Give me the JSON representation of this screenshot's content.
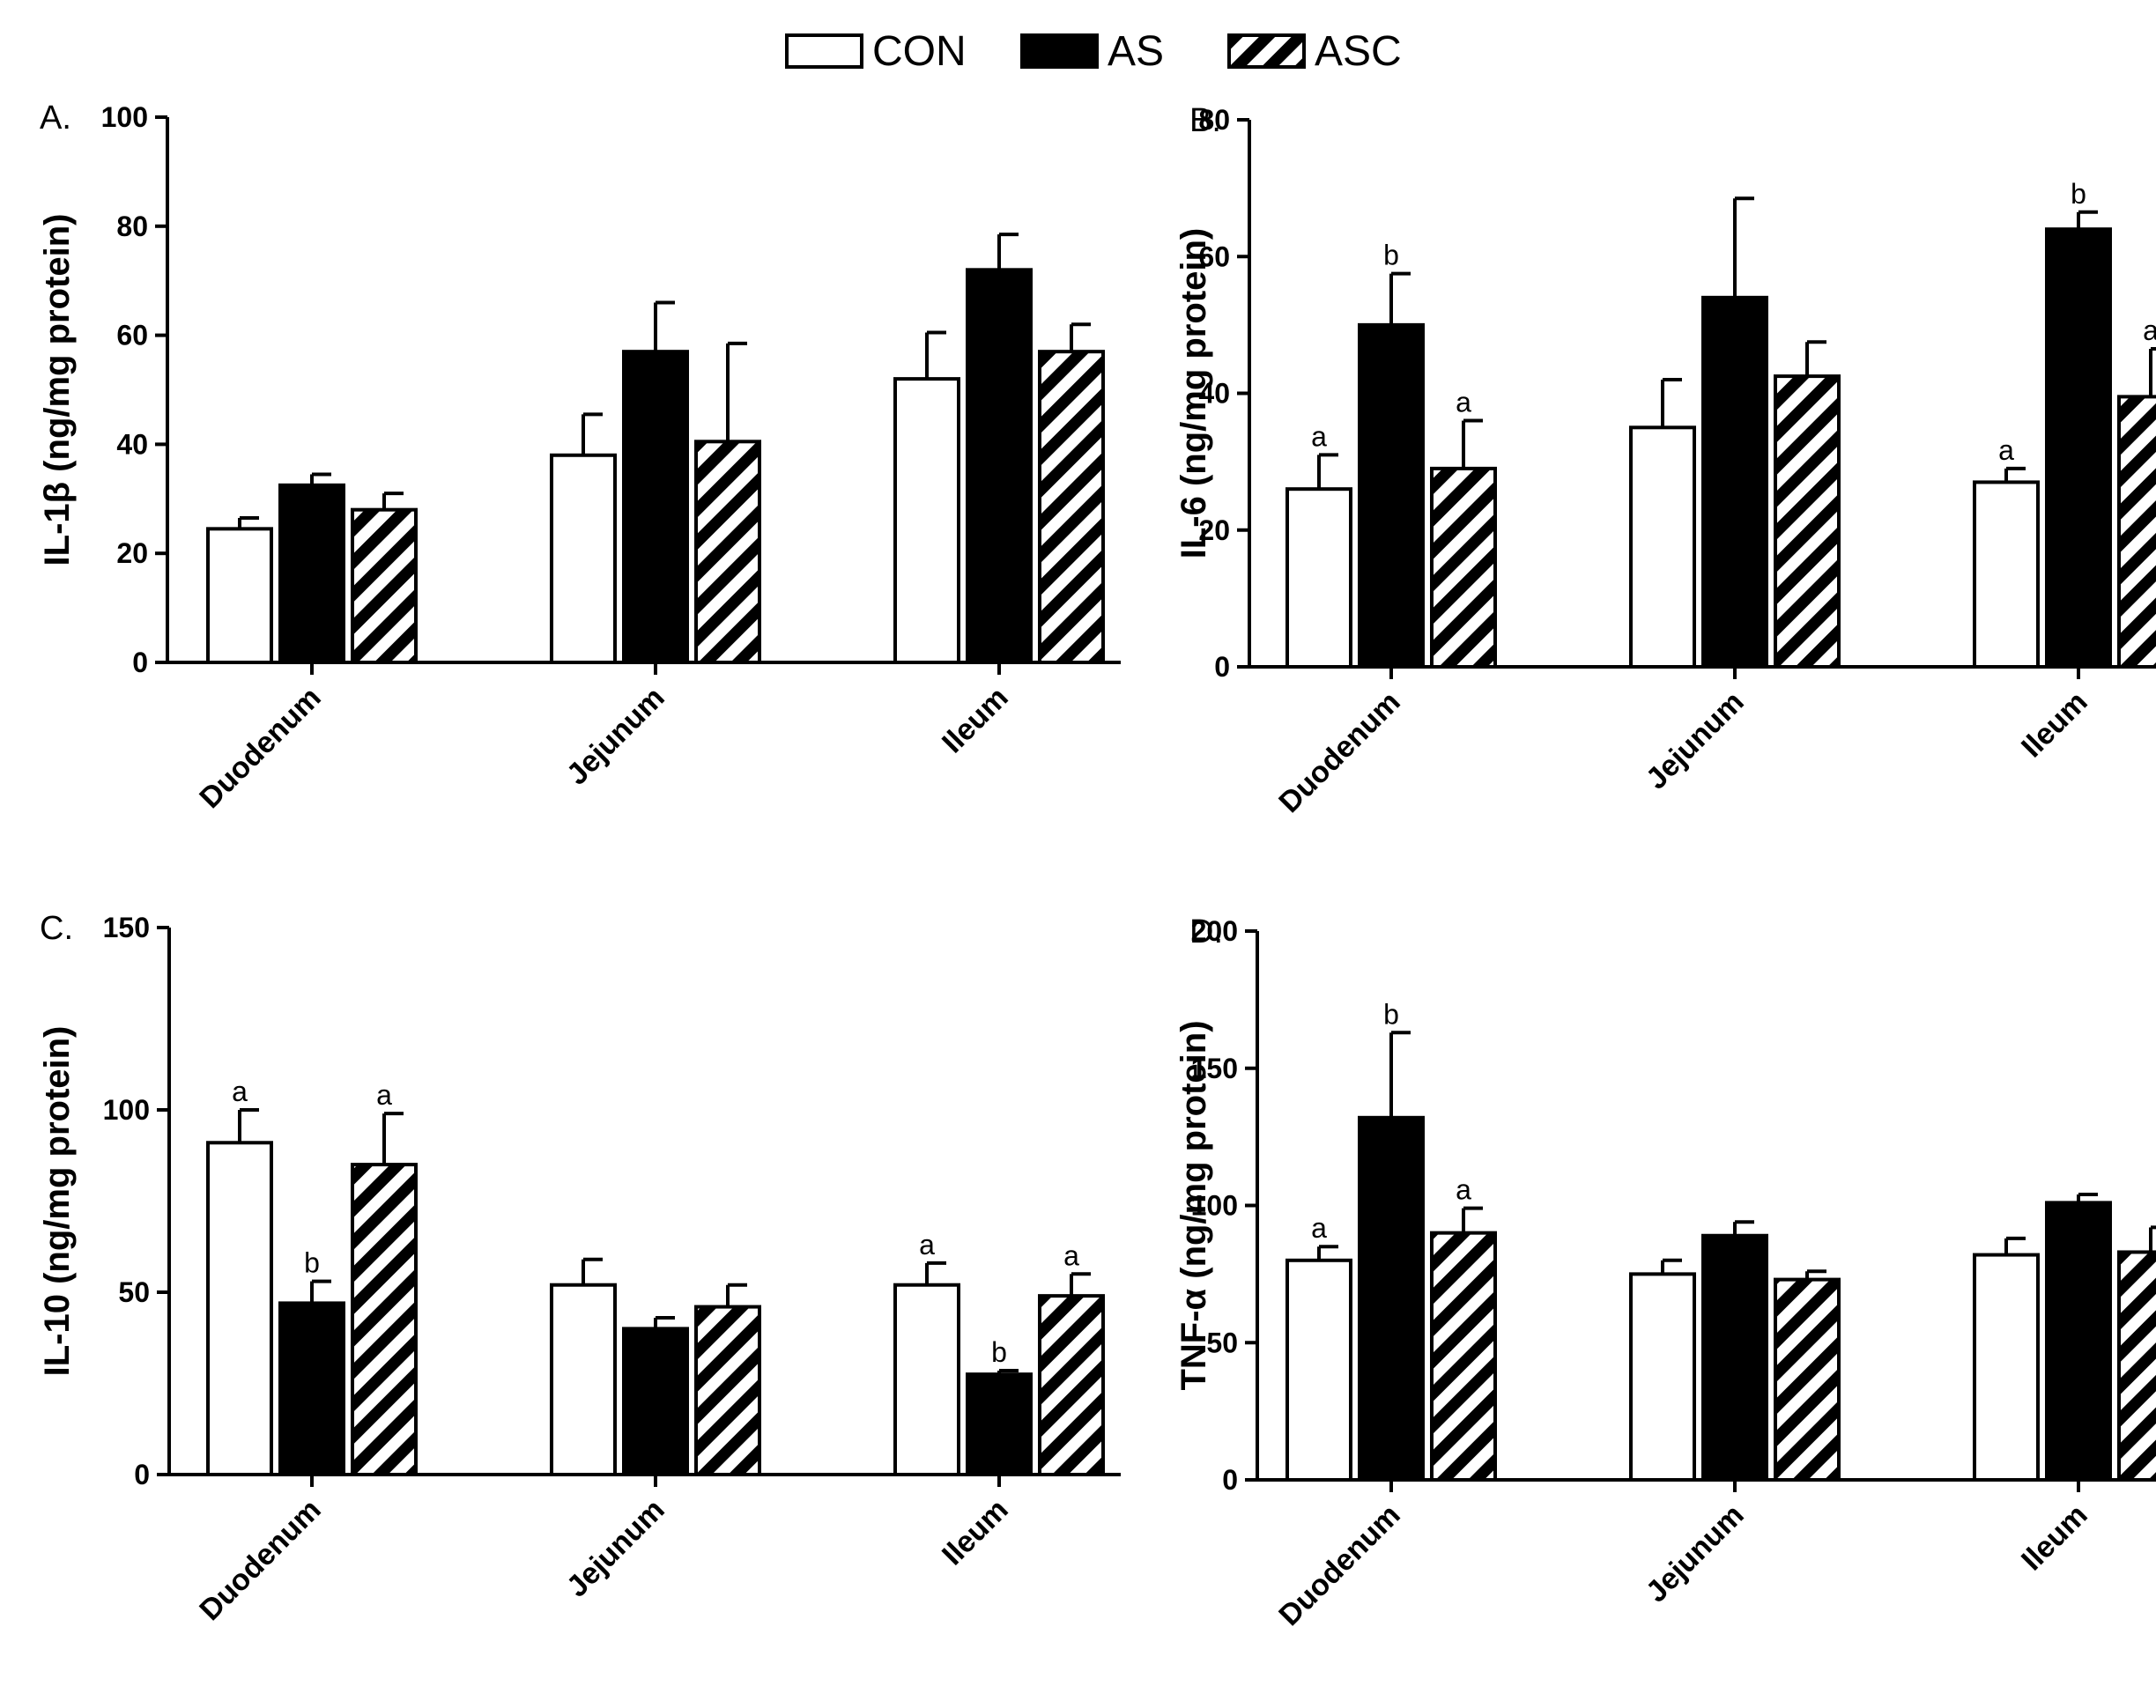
{
  "legend": [
    {
      "name": "CON",
      "fill": "white"
    },
    {
      "name": "AS",
      "fill": "black"
    },
    {
      "name": "ASC",
      "fill": "hatch"
    }
  ],
  "colors": {
    "ink": "#000000",
    "background": "#ffffff"
  },
  "chart_data": [
    {
      "type": "bar",
      "panel_label": "A.",
      "ylabel": "IL-1β  (ng/mg protein)",
      "ylim": [
        0,
        100
      ],
      "yticks": [
        0,
        20,
        40,
        60,
        80,
        100
      ],
      "categories": [
        "Duodenum",
        "Jejunum",
        "Ileum"
      ],
      "series": [
        {
          "name": "CON",
          "values": [
            24.5,
            38,
            52
          ],
          "errors": [
            2,
            7.5,
            8.5
          ],
          "sig": [
            "",
            "",
            ""
          ]
        },
        {
          "name": "AS",
          "values": [
            32.5,
            57,
            72
          ],
          "errors": [
            2,
            9,
            6.5
          ],
          "sig": [
            "",
            "",
            ""
          ]
        },
        {
          "name": "ASC",
          "values": [
            28,
            40.5,
            57
          ],
          "errors": [
            3,
            18,
            5
          ],
          "sig": [
            "",
            "",
            ""
          ]
        }
      ]
    },
    {
      "type": "bar",
      "panel_label": "B.",
      "ylabel": "IL-6 (ng/mg protein)",
      "ylim": [
        0,
        80
      ],
      "yticks": [
        0,
        20,
        40,
        60,
        80
      ],
      "categories": [
        "Duodenum",
        "Jejunum",
        "Ileum"
      ],
      "series": [
        {
          "name": "CON",
          "values": [
            26,
            35,
            27
          ],
          "errors": [
            5,
            7,
            2
          ],
          "sig": [
            "a",
            "",
            "a"
          ]
        },
        {
          "name": "AS",
          "values": [
            50,
            54,
            64
          ],
          "errors": [
            7.5,
            14.5,
            2.5
          ],
          "sig": [
            "b",
            "",
            "b"
          ]
        },
        {
          "name": "ASC",
          "values": [
            29,
            42.5,
            39.5
          ],
          "errors": [
            7,
            5,
            7
          ],
          "sig": [
            "a",
            "",
            "a"
          ]
        }
      ]
    },
    {
      "type": "bar",
      "panel_label": "C.",
      "ylabel": "IL-10 (ng/mg protein)",
      "ylim": [
        0,
        150
      ],
      "yticks": [
        0,
        50,
        100,
        150
      ],
      "categories": [
        "Duodenum",
        "Jejunum",
        "Ileum"
      ],
      "series": [
        {
          "name": "CON",
          "values": [
            91,
            52,
            52
          ],
          "errors": [
            9,
            7,
            6
          ],
          "sig": [
            "a",
            "",
            "a"
          ]
        },
        {
          "name": "AS",
          "values": [
            47,
            40,
            27.5
          ],
          "errors": [
            6,
            3,
            1
          ],
          "sig": [
            "b",
            "",
            "b"
          ]
        },
        {
          "name": "ASC",
          "values": [
            85,
            46,
            49
          ],
          "errors": [
            14,
            6,
            6
          ],
          "sig": [
            "a",
            "",
            "a"
          ]
        }
      ]
    },
    {
      "type": "bar",
      "panel_label": "D.",
      "ylabel": "TNF-α (ng/mg protein)",
      "ylim": [
        0,
        200
      ],
      "yticks": [
        0,
        50,
        100,
        150,
        200
      ],
      "categories": [
        "Duodenum",
        "Jejunum",
        "Ileum"
      ],
      "series": [
        {
          "name": "CON",
          "values": [
            80,
            75,
            82
          ],
          "errors": [
            5,
            5,
            6
          ],
          "sig": [
            "a",
            "",
            ""
          ]
        },
        {
          "name": "AS",
          "values": [
            132,
            89,
            101
          ],
          "errors": [
            31,
            5,
            3
          ],
          "sig": [
            "b",
            "",
            ""
          ]
        },
        {
          "name": "ASC",
          "values": [
            90,
            73,
            83
          ],
          "errors": [
            9,
            3,
            9
          ],
          "sig": [
            "a",
            "",
            ""
          ]
        }
      ]
    }
  ]
}
